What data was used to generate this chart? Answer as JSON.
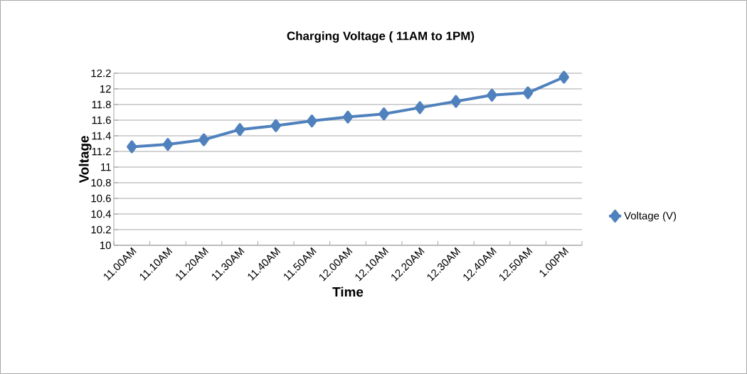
{
  "chart_data": {
    "type": "line",
    "title": "Charging Voltage ( 11AM to 1PM)",
    "xlabel": "Time",
    "ylabel": "Voltage",
    "categories": [
      "11.00AM",
      "11.10AM",
      "11.20AM",
      "11.30AM",
      "11.40AM",
      "11.50AM",
      "12.00AM",
      "12.10AM",
      "12.20AM",
      "12.30AM",
      "12.40AM",
      "12.50AM",
      "1.00PM"
    ],
    "series": [
      {
        "name": "Voltage (V)",
        "color": "#4f81bd",
        "values": [
          11.26,
          11.29,
          11.35,
          11.48,
          11.53,
          11.59,
          11.64,
          11.68,
          11.76,
          11.84,
          11.92,
          11.95,
          12.15
        ]
      }
    ],
    "ylim": [
      10,
      12.2
    ],
    "yticks": [
      10,
      10.2,
      10.4,
      10.6,
      10.8,
      11,
      11.2,
      11.4,
      11.6,
      11.8,
      12,
      12.2
    ],
    "grid": "y",
    "legend": "right",
    "marker": "diamond",
    "line_style": "solid"
  }
}
